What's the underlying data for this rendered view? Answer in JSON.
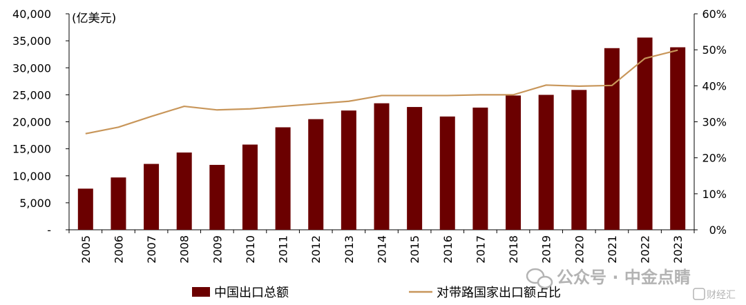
{
  "chart_data": {
    "type": "bar",
    "unit_label": "(亿美元)",
    "categories": [
      "2005",
      "2006",
      "2007",
      "2008",
      "2009",
      "2010",
      "2011",
      "2012",
      "2013",
      "2014",
      "2015",
      "2016",
      "2017",
      "2018",
      "2019",
      "2020",
      "2021",
      "2022",
      "2023"
    ],
    "series": [
      {
        "name": "中国出口总额",
        "type": "bar",
        "axis": "left",
        "color": "#6b0000",
        "values": [
          7620,
          9690,
          12200,
          14310,
          12020,
          15780,
          18980,
          20490,
          22090,
          23430,
          22740,
          20980,
          22630,
          24870,
          24990,
          25900,
          33640,
          35600,
          33800
        ]
      },
      {
        "name": "对带路国家出口额占比",
        "type": "line",
        "axis": "right",
        "color": "#c8965a",
        "values": [
          26.7,
          28.5,
          31.5,
          34.3,
          33.3,
          33.6,
          34.3,
          35.0,
          35.7,
          37.3,
          37.3,
          37.3,
          37.5,
          37.5,
          40.2,
          39.9,
          40.1,
          47.6,
          49.9
        ]
      }
    ],
    "y_left": {
      "min": 0,
      "max": 40000,
      "tick_labels": [
        "-",
        "5,000",
        "10,000",
        "15,000",
        "20,000",
        "25,000",
        "30,000",
        "35,000",
        "40,000"
      ]
    },
    "y_right": {
      "min": 0,
      "max": 60,
      "tick_labels": [
        "0%",
        "10%",
        "20%",
        "30%",
        "40%",
        "50%",
        "60%"
      ]
    },
    "grid": false,
    "legend_position": "bottom"
  },
  "watermark": {
    "text": "公众号 · 中金点睛",
    "corner": "财经汇"
  }
}
